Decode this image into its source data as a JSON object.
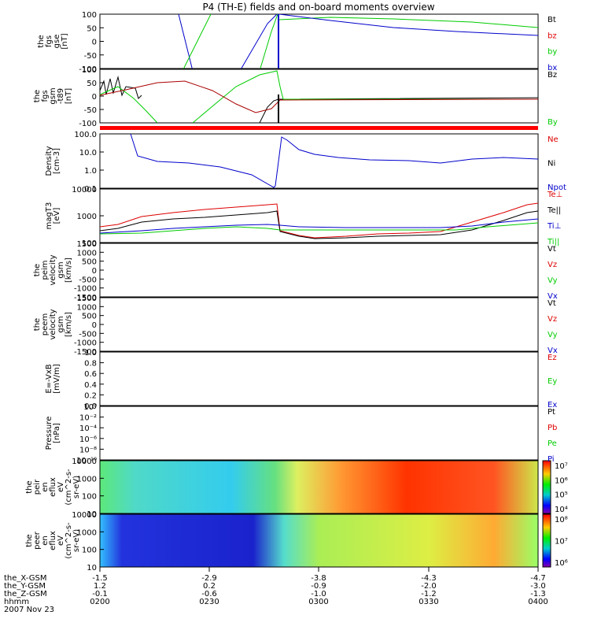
{
  "title": "P4 (TH-E) fields and on-board moments overview",
  "colors": {
    "black": "#000000",
    "red": "#dd0000",
    "green": "#00cc00",
    "blue": "#0000cc",
    "bar": "#ff0000"
  },
  "panels": [
    {
      "id": "fgs-gse",
      "ylabel": [
        "the",
        "fgs",
        "gse",
        "[nT]"
      ],
      "ticks": [
        "100",
        "50",
        "0",
        "-50",
        "-100"
      ],
      "legend": [
        {
          "t": "Bt",
          "c": "black"
        },
        {
          "t": "bz",
          "c": "red"
        },
        {
          "t": "by",
          "c": "green"
        },
        {
          "t": "bx",
          "c": "blue"
        }
      ]
    },
    {
      "id": "fgs-gsm",
      "ylabel": [
        "the",
        "fgs",
        "gsm",
        "-t89",
        "[nT]"
      ],
      "ticks": [
        "100",
        "50",
        "0",
        "-50",
        "-100"
      ],
      "legend": [
        {
          "t": "Bz",
          "c": "black"
        },
        {
          "t": "By",
          "c": "green"
        }
      ]
    },
    {
      "id": "density",
      "ylabel": [
        "Density",
        "[cm-3]"
      ],
      "ticks": [
        "100.0",
        "10.0",
        "1.0",
        "0.1"
      ],
      "legend": [
        {
          "t": "Ne",
          "c": "red"
        },
        {
          "t": "Ni",
          "c": "black"
        },
        {
          "t": "Npot",
          "c": "blue"
        }
      ]
    },
    {
      "id": "temp",
      "ylabel": [
        "magT3",
        "[eV]"
      ],
      "ticks": [
        "10000",
        "1000",
        "100"
      ],
      "legend": [
        {
          "t": "Te⊥",
          "c": "red"
        },
        {
          "t": "Te||",
          "c": "black"
        },
        {
          "t": "Ti⊥",
          "c": "blue"
        },
        {
          "t": "Ti||",
          "c": "green"
        }
      ]
    },
    {
      "id": "peim-vel",
      "ylabel": [
        "the",
        "peim",
        "velocity",
        "gsm",
        "[km/s]"
      ],
      "ticks": [
        "1500",
        "1000",
        "500",
        "0",
        "-500",
        "-1000",
        "-1500"
      ],
      "legend": [
        {
          "t": "Vt",
          "c": "black"
        },
        {
          "t": "Vz",
          "c": "red"
        },
        {
          "t": "Vy",
          "c": "green"
        },
        {
          "t": "Vx",
          "c": "blue"
        }
      ]
    },
    {
      "id": "peem-vel",
      "ylabel": [
        "the",
        "peem",
        "velocity",
        "gsm",
        "[km/s]"
      ],
      "ticks": [
        "1500",
        "1000",
        "500",
        "0",
        "-500",
        "-1000",
        "-1500"
      ],
      "legend": [
        {
          "t": "Vt",
          "c": "black"
        },
        {
          "t": "Vz",
          "c": "red"
        },
        {
          "t": "Vy",
          "c": "green"
        },
        {
          "t": "Vx",
          "c": "blue"
        }
      ]
    },
    {
      "id": "efield",
      "ylabel": [
        "E=-VxB",
        "[mV/m]"
      ],
      "ticks": [
        "1.0",
        "0.8",
        "0.6",
        "0.4",
        "0.2",
        "0.0"
      ],
      "legend": [
        {
          "t": "Ez",
          "c": "red"
        },
        {
          "t": "Ey",
          "c": "green"
        },
        {
          "t": "Ex",
          "c": "blue"
        }
      ]
    },
    {
      "id": "pressure",
      "ylabel": [
        "Pressure",
        "[nPa]"
      ],
      "ticks": [
        "10⁰",
        "10⁻²",
        "10⁻⁴",
        "10⁻⁶",
        "10⁻⁸",
        "10⁻¹⁰"
      ],
      "legend": [
        {
          "t": "Pt",
          "c": "black"
        },
        {
          "t": "Pb",
          "c": "red"
        },
        {
          "t": "Pe",
          "c": "green"
        },
        {
          "t": "Pi",
          "c": "blue"
        }
      ]
    },
    {
      "id": "peir-eflux",
      "ylabel": [
        "the",
        "peir",
        "en",
        "eflux",
        "eV",
        "(cm^2-s-",
        "sr-eV)"
      ],
      "ticks": [
        "10000",
        "1000",
        "100",
        "10"
      ],
      "colorbar": [
        "10⁷",
        "10⁶",
        "10⁵",
        "10⁴"
      ]
    },
    {
      "id": "peer-eflux",
      "ylabel": [
        "the",
        "peer",
        "en",
        "eflux",
        "eV",
        "(cm^2-s-",
        "sr-eV)"
      ],
      "ticks": [
        "10000",
        "1000",
        "100",
        "10"
      ],
      "colorbar": [
        "10⁸",
        "10⁷",
        "10⁶"
      ]
    }
  ],
  "xaxis": {
    "rows": [
      {
        "label": "the_X-GSM",
        "values": [
          "-1.5",
          "-2.9",
          "-3.8",
          "-4.3",
          "-4.7"
        ]
      },
      {
        "label": "the_Y-GSM",
        "values": [
          "1.2",
          "0.2",
          "-0.9",
          "-2.0",
          "-3.0"
        ]
      },
      {
        "label": "the_Z-GSM",
        "values": [
          "-0.1",
          "-0.6",
          "-1.0",
          "-1.2",
          "-1.3"
        ]
      },
      {
        "label": "hhmm",
        "values": [
          "0200",
          "0230",
          "0300",
          "0330",
          "0400"
        ]
      }
    ],
    "date": "2007 Nov 23"
  },
  "chart_data": {
    "type": "line",
    "title": "P4 (TH-E) fields and on-board moments overview",
    "x": [
      "0200",
      "0230",
      "0300",
      "0330",
      "0400"
    ],
    "xlabel": "hhmm",
    "series": [
      {
        "name": "bx",
        "values": [
          100,
          -100,
          100,
          40,
          25
        ]
      },
      {
        "name": "by",
        "values": [
          -100,
          100,
          90,
          70,
          50
        ]
      },
      {
        "name": "Npot",
        "values": [
          2,
          1.2,
          0.05,
          1.5,
          2
        ]
      },
      {
        "name": "Te⊥",
        "values": [
          300,
          1500,
          150,
          300,
          3000
        ]
      }
    ]
  }
}
